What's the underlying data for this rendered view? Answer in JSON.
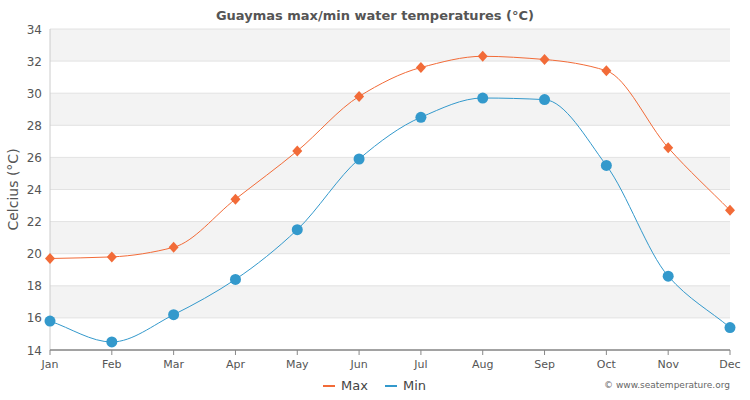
{
  "chart_data": {
    "type": "line",
    "title": "Guaymas max/min water temperatures (°C)",
    "y_label": "Celcius (°C)",
    "annotations": [
      "© www.seatemperature.org"
    ],
    "categories": [
      "Jan",
      "Feb",
      "Mar",
      "Apr",
      "May",
      "Jun",
      "Jul",
      "Aug",
      "Sep",
      "Oct",
      "Nov",
      "Dec"
    ],
    "series": [
      {
        "name": "Max",
        "color": "#f26b38",
        "marker": "diamond",
        "line_style": "solid",
        "values": [
          19.7,
          19.8,
          20.4,
          23.4,
          26.4,
          29.8,
          31.6,
          32.3,
          32.1,
          31.4,
          26.6,
          22.7
        ]
      },
      {
        "name": "Min",
        "color": "#3399cc",
        "marker": "circle",
        "line_style": "solid",
        "values": [
          15.8,
          14.5,
          16.2,
          18.4,
          21.5,
          25.9,
          28.5,
          29.7,
          29.6,
          25.5,
          18.6,
          15.4
        ]
      }
    ],
    "ylim": [
      14,
      34
    ],
    "yticks": [
      14,
      16,
      18,
      20,
      22,
      24,
      26,
      28,
      30,
      32,
      34
    ],
    "grid": true,
    "legend": "bottom"
  }
}
